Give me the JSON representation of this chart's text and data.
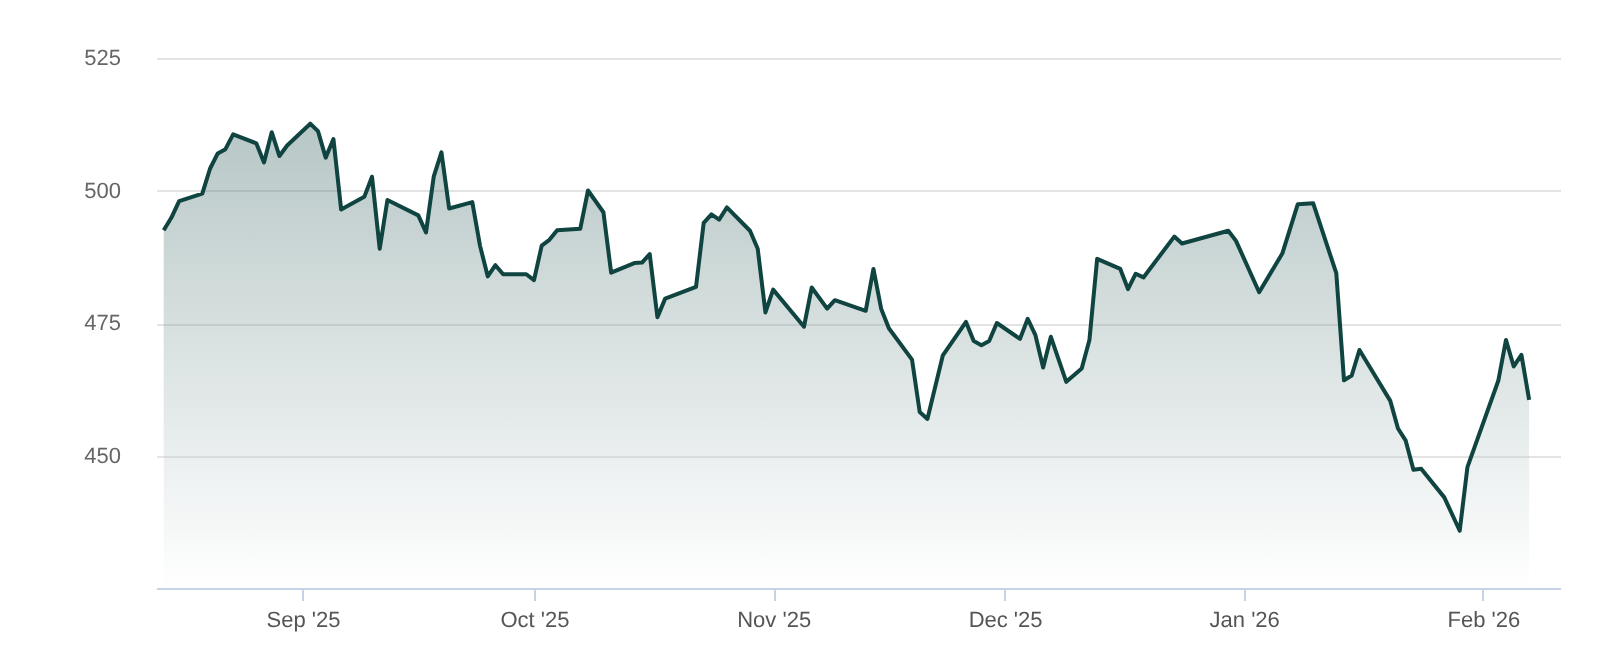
{
  "chart_data": {
    "type": "area",
    "xlim": [
      "2025-08-13",
      "2026-02-11"
    ],
    "ylim": [
      425,
      525
    ],
    "xticks": [
      {
        "value": "2025-09-01",
        "label": "Sep '25"
      },
      {
        "value": "2025-10-01",
        "label": "Oct '25"
      },
      {
        "value": "2025-11-01",
        "label": "Nov '25"
      },
      {
        "value": "2025-12-01",
        "label": "Dec '25"
      },
      {
        "value": "2026-01-01",
        "label": "Jan '26"
      },
      {
        "value": "2026-02-01",
        "label": "Feb '26"
      }
    ],
    "yticks": [
      450,
      475,
      500,
      525
    ],
    "grid": "y",
    "x": [
      "2025-08-14",
      "2025-08-15",
      "2025-08-16",
      "2025-08-19",
      "2025-08-20",
      "2025-08-21",
      "2025-08-22",
      "2025-08-23",
      "2025-08-26",
      "2025-08-27",
      "2025-08-28",
      "2025-08-29",
      "2025-08-30",
      "2025-09-02",
      "2025-09-03",
      "2025-09-04",
      "2025-09-05",
      "2025-09-06",
      "2025-09-09",
      "2025-09-10",
      "2025-09-11",
      "2025-09-12",
      "2025-09-16",
      "2025-09-17",
      "2025-09-18",
      "2025-09-19",
      "2025-09-20",
      "2025-09-23",
      "2025-09-24",
      "2025-09-25",
      "2025-09-26",
      "2025-09-27",
      "2025-09-30",
      "2025-10-01",
      "2025-10-02",
      "2025-10-03",
      "2025-10-04",
      "2025-10-07",
      "2025-10-08",
      "2025-10-10",
      "2025-10-11",
      "2025-10-14",
      "2025-10-15",
      "2025-10-16",
      "2025-10-17",
      "2025-10-18",
      "2025-10-22",
      "2025-10-23",
      "2025-10-24",
      "2025-10-25",
      "2025-10-26",
      "2025-10-29",
      "2025-10-30",
      "2025-10-31",
      "2025-11-01",
      "2025-11-05",
      "2025-11-06",
      "2025-11-08",
      "2025-11-09",
      "2025-11-13",
      "2025-11-14",
      "2025-11-15",
      "2025-11-16",
      "2025-11-19",
      "2025-11-20",
      "2025-11-21",
      "2025-11-23",
      "2025-11-26",
      "2025-11-27",
      "2025-11-28",
      "2025-11-29",
      "2025-11-30",
      "2025-12-03",
      "2025-12-04",
      "2025-12-05",
      "2025-12-06",
      "2025-12-07",
      "2025-12-09",
      "2025-12-11",
      "2025-12-12",
      "2025-12-13",
      "2025-12-16",
      "2025-12-17",
      "2025-12-18",
      "2025-12-19",
      "2025-12-23",
      "2025-12-24",
      "2025-12-30",
      "2025-12-31",
      "2026-01-03",
      "2026-01-06",
      "2026-01-08",
      "2026-01-10",
      "2026-01-13",
      "2026-01-14",
      "2026-01-15",
      "2026-01-16",
      "2026-01-20",
      "2026-01-21",
      "2026-01-22",
      "2026-01-23",
      "2026-01-24",
      "2026-01-27",
      "2026-01-29",
      "2026-01-30",
      "2026-02-03",
      "2026-02-04",
      "2026-02-05",
      "2026-02-06",
      "2026-02-07"
    ],
    "series": [
      {
        "color": "#0f4441",
        "values": [
          492.5,
          494.9,
          498,
          499.4,
          504.1,
          507,
          507.8,
          510.6,
          508.9,
          505.3,
          511,
          506.5,
          508.5,
          512.6,
          511.2,
          506.2,
          509.7,
          496.4,
          498.8,
          502.6,
          489,
          498.2,
          495.3,
          492.1,
          502.6,
          507.2,
          496.6,
          497.8,
          489.6,
          483.8,
          485.9,
          484.2,
          484.2,
          483.1,
          489.6,
          490.7,
          492.5,
          492.8,
          500,
          495.9,
          484.5,
          486.3,
          486.4,
          488,
          476.1,
          479.6,
          481.8,
          493.9,
          495.5,
          494.5,
          496.8,
          492.4,
          489,
          477,
          481.3,
          474.3,
          481.7,
          477.7,
          479.3,
          477.3,
          485.2,
          477.7,
          474,
          468.1,
          458.2,
          456.9,
          468.9,
          475.2,
          471.6,
          470.8,
          471.6,
          475,
          472,
          475.8,
          472.7,
          466.6,
          472.4,
          463.9,
          466.4,
          471.8,
          487.1,
          485.2,
          481.4,
          484.3,
          483.6,
          491.3,
          490,
          492.4,
          490.5,
          480.8,
          488.1,
          497.4,
          497.6,
          484.4,
          464.2,
          465.1,
          469.9,
          460.3,
          455.1,
          452.8,
          447.3,
          447.5,
          442.1,
          435.8,
          447.8,
          464.1,
          471.8,
          466.8,
          469,
          460.5
        ]
      }
    ]
  }
}
